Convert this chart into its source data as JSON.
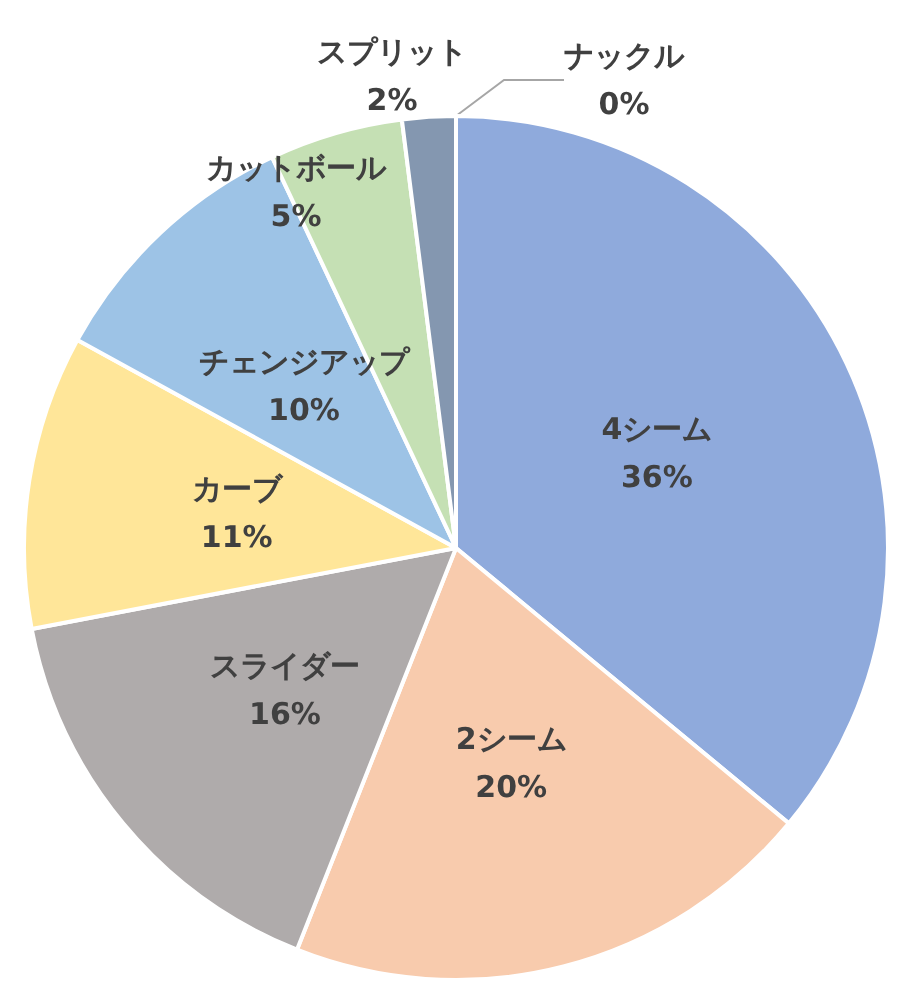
{
  "chart_data": {
    "type": "pie",
    "categories": [
      "4シーム",
      "2シーム",
      "スライダー",
      "カーブ",
      "チェンジアップ",
      "カットボール",
      "スプリット",
      "ナックル"
    ],
    "values": [
      36,
      20,
      16,
      11,
      10,
      5,
      2,
      0
    ],
    "value_labels": [
      "36%",
      "20%",
      "16%",
      "11%",
      "10%",
      "5%",
      "2%",
      "0%"
    ],
    "colors": [
      "#8faadc",
      "#f8cbad",
      "#afabab",
      "#ffe699",
      "#9dc3e6",
      "#c5e0b4",
      "#8497b0",
      "#f4b183"
    ],
    "legend": false
  }
}
